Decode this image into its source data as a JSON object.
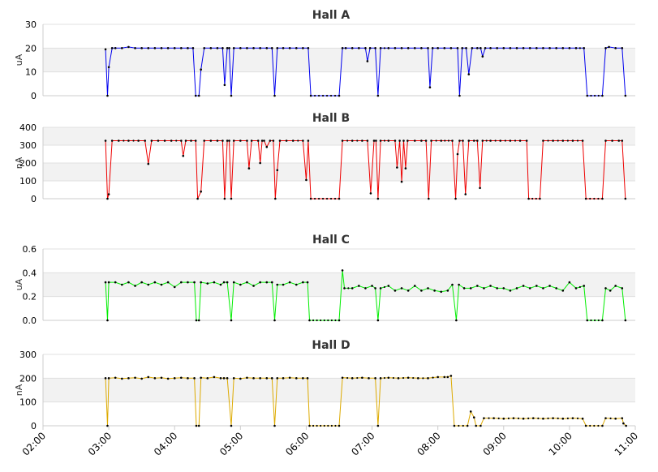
{
  "chart_data": [
    {
      "type": "line",
      "title": "Hall A",
      "ylabel": "uA",
      "ylim": [
        0,
        30
      ],
      "yticks": [
        "0",
        "10",
        "20",
        "30"
      ],
      "color": "#0000ee",
      "points": [
        [
          2.95,
          19.5
        ],
        [
          2.98,
          0
        ],
        [
          3.0,
          12
        ],
        [
          3.05,
          20
        ],
        [
          3.1,
          20
        ],
        [
          3.2,
          20
        ],
        [
          3.3,
          20.5
        ],
        [
          3.4,
          20
        ],
        [
          3.5,
          20
        ],
        [
          3.6,
          20
        ],
        [
          3.7,
          20
        ],
        [
          3.8,
          20
        ],
        [
          3.9,
          20
        ],
        [
          4.0,
          20
        ],
        [
          4.1,
          20
        ],
        [
          4.2,
          20
        ],
        [
          4.28,
          20
        ],
        [
          4.32,
          0
        ],
        [
          4.37,
          0
        ],
        [
          4.4,
          11
        ],
        [
          4.45,
          20
        ],
        [
          4.55,
          20
        ],
        [
          4.65,
          20
        ],
        [
          4.73,
          20
        ],
        [
          4.76,
          4.5
        ],
        [
          4.8,
          20
        ],
        [
          4.83,
          20
        ],
        [
          4.86,
          0
        ],
        [
          4.9,
          20
        ],
        [
          5.0,
          20
        ],
        [
          5.1,
          20
        ],
        [
          5.2,
          20
        ],
        [
          5.3,
          20
        ],
        [
          5.4,
          20
        ],
        [
          5.48,
          20
        ],
        [
          5.52,
          0
        ],
        [
          5.56,
          20
        ],
        [
          5.65,
          20
        ],
        [
          5.75,
          20
        ],
        [
          5.85,
          20
        ],
        [
          5.95,
          20
        ],
        [
          6.03,
          20
        ],
        [
          6.07,
          0
        ],
        [
          6.5,
          0
        ],
        [
          6.55,
          20
        ],
        [
          6.6,
          20
        ],
        [
          6.7,
          20
        ],
        [
          6.8,
          20
        ],
        [
          6.9,
          20
        ],
        [
          6.93,
          14.5
        ],
        [
          6.97,
          20
        ],
        [
          7.05,
          20
        ],
        [
          7.09,
          0
        ],
        [
          7.13,
          20
        ],
        [
          7.25,
          20
        ],
        [
          7.35,
          20
        ],
        [
          7.45,
          20
        ],
        [
          7.55,
          20
        ],
        [
          7.65,
          20
        ],
        [
          7.75,
          20
        ],
        [
          7.85,
          20
        ],
        [
          7.88,
          3.5
        ],
        [
          7.92,
          20
        ],
        [
          8.0,
          20
        ],
        [
          8.1,
          20
        ],
        [
          8.2,
          20
        ],
        [
          8.3,
          20
        ],
        [
          8.33,
          0
        ],
        [
          8.37,
          20
        ],
        [
          8.43,
          20
        ],
        [
          8.47,
          9
        ],
        [
          8.52,
          20
        ],
        [
          8.6,
          20
        ],
        [
          8.65,
          20
        ],
        [
          8.68,
          16.5
        ],
        [
          8.72,
          20
        ],
        [
          8.8,
          20
        ],
        [
          8.9,
          20
        ],
        [
          9.0,
          20
        ],
        [
          9.1,
          20
        ],
        [
          9.2,
          20
        ],
        [
          9.3,
          20
        ],
        [
          9.4,
          20
        ],
        [
          9.5,
          20
        ],
        [
          9.6,
          20
        ],
        [
          9.7,
          20
        ],
        [
          9.8,
          20
        ],
        [
          9.9,
          20
        ],
        [
          10.0,
          20
        ],
        [
          10.1,
          20
        ],
        [
          10.22,
          20
        ],
        [
          10.27,
          0
        ],
        [
          10.5,
          0
        ],
        [
          10.55,
          20
        ],
        [
          10.6,
          20.5
        ],
        [
          10.7,
          20
        ],
        [
          10.8,
          20
        ],
        [
          10.85,
          0
        ]
      ]
    },
    {
      "type": "line",
      "title": "Hall B",
      "ylabel": "nA",
      "ylim": [
        0,
        400
      ],
      "yticks": [
        "0",
        "100",
        "200",
        "300",
        "400"
      ],
      "color": "#ee0000",
      "points": [
        [
          2.95,
          325
        ],
        [
          2.98,
          0
        ],
        [
          3.0,
          25
        ],
        [
          3.05,
          325
        ],
        [
          3.15,
          325
        ],
        [
          3.3,
          325
        ],
        [
          3.45,
          325
        ],
        [
          3.55,
          325
        ],
        [
          3.6,
          195
        ],
        [
          3.65,
          325
        ],
        [
          3.75,
          325
        ],
        [
          3.85,
          325
        ],
        [
          3.95,
          325
        ],
        [
          4.1,
          325
        ],
        [
          4.13,
          240
        ],
        [
          4.17,
          325
        ],
        [
          4.25,
          325
        ],
        [
          4.32,
          325
        ],
        [
          4.35,
          0
        ],
        [
          4.4,
          40
        ],
        [
          4.45,
          325
        ],
        [
          4.55,
          325
        ],
        [
          4.65,
          325
        ],
        [
          4.73,
          325
        ],
        [
          4.76,
          0
        ],
        [
          4.8,
          325
        ],
        [
          4.83,
          325
        ],
        [
          4.86,
          0
        ],
        [
          4.9,
          325
        ],
        [
          5.0,
          325
        ],
        [
          5.1,
          325
        ],
        [
          5.13,
          170
        ],
        [
          5.17,
          325
        ],
        [
          5.27,
          325
        ],
        [
          5.3,
          200
        ],
        [
          5.33,
          325
        ],
        [
          5.36,
          325
        ],
        [
          5.4,
          290
        ],
        [
          5.45,
          325
        ],
        [
          5.5,
          325
        ],
        [
          5.53,
          0
        ],
        [
          5.56,
          160
        ],
        [
          5.6,
          325
        ],
        [
          5.7,
          325
        ],
        [
          5.8,
          325
        ],
        [
          5.95,
          325
        ],
        [
          6.0,
          105
        ],
        [
          6.03,
          325
        ],
        [
          6.07,
          0
        ],
        [
          6.5,
          0
        ],
        [
          6.55,
          325
        ],
        [
          6.7,
          325
        ],
        [
          6.85,
          325
        ],
        [
          6.93,
          325
        ],
        [
          6.98,
          30
        ],
        [
          7.03,
          325
        ],
        [
          7.06,
          325
        ],
        [
          7.09,
          0
        ],
        [
          7.13,
          325
        ],
        [
          7.25,
          325
        ],
        [
          7.35,
          325
        ],
        [
          7.38,
          175
        ],
        [
          7.42,
          325
        ],
        [
          7.45,
          95
        ],
        [
          7.48,
          325
        ],
        [
          7.51,
          170
        ],
        [
          7.54,
          325
        ],
        [
          7.65,
          325
        ],
        [
          7.75,
          325
        ],
        [
          7.82,
          325
        ],
        [
          7.86,
          0
        ],
        [
          7.9,
          325
        ],
        [
          8.05,
          325
        ],
        [
          8.22,
          325
        ],
        [
          8.27,
          0
        ],
        [
          8.3,
          250
        ],
        [
          8.33,
          325
        ],
        [
          8.38,
          325
        ],
        [
          8.42,
          25
        ],
        [
          8.47,
          325
        ],
        [
          8.55,
          325
        ],
        [
          8.6,
          325
        ],
        [
          8.64,
          60
        ],
        [
          8.68,
          325
        ],
        [
          8.8,
          325
        ],
        [
          8.95,
          325
        ],
        [
          9.1,
          325
        ],
        [
          9.25,
          325
        ],
        [
          9.35,
          325
        ],
        [
          9.38,
          0
        ],
        [
          9.55,
          0
        ],
        [
          9.6,
          325
        ],
        [
          9.75,
          325
        ],
        [
          9.9,
          325
        ],
        [
          10.05,
          325
        ],
        [
          10.2,
          325
        ],
        [
          10.25,
          0
        ],
        [
          10.5,
          0
        ],
        [
          10.55,
          325
        ],
        [
          10.65,
          325
        ],
        [
          10.75,
          325
        ],
        [
          10.8,
          325
        ],
        [
          10.85,
          0
        ]
      ]
    },
    {
      "type": "line",
      "title": "Hall C",
      "ylabel": "uA",
      "ylim": [
        0,
        0.6
      ],
      "yticks": [
        "0.0",
        "0.2",
        "0.4",
        "0.6"
      ],
      "color": "#00ee00",
      "points": [
        [
          2.95,
          0.32
        ],
        [
          2.98,
          0
        ],
        [
          3.0,
          0.32
        ],
        [
          3.1,
          0.32
        ],
        [
          3.2,
          0.3
        ],
        [
          3.3,
          0.32
        ],
        [
          3.4,
          0.29
        ],
        [
          3.5,
          0.32
        ],
        [
          3.6,
          0.3
        ],
        [
          3.7,
          0.32
        ],
        [
          3.8,
          0.3
        ],
        [
          3.9,
          0.32
        ],
        [
          4.0,
          0.28
        ],
        [
          4.1,
          0.32
        ],
        [
          4.2,
          0.32
        ],
        [
          4.3,
          0.32
        ],
        [
          4.33,
          0
        ],
        [
          4.37,
          0
        ],
        [
          4.4,
          0.32
        ],
        [
          4.5,
          0.31
        ],
        [
          4.6,
          0.32
        ],
        [
          4.7,
          0.3
        ],
        [
          4.75,
          0.32
        ],
        [
          4.8,
          0.32
        ],
        [
          4.86,
          0
        ],
        [
          4.9,
          0.32
        ],
        [
          5.0,
          0.3
        ],
        [
          5.1,
          0.32
        ],
        [
          5.2,
          0.29
        ],
        [
          5.3,
          0.32
        ],
        [
          5.4,
          0.32
        ],
        [
          5.48,
          0.32
        ],
        [
          5.52,
          0
        ],
        [
          5.56,
          0.3
        ],
        [
          5.65,
          0.3
        ],
        [
          5.75,
          0.32
        ],
        [
          5.85,
          0.3
        ],
        [
          5.95,
          0.32
        ],
        [
          6.02,
          0.32
        ],
        [
          6.05,
          0
        ],
        [
          6.5,
          0
        ],
        [
          6.55,
          0.42
        ],
        [
          6.58,
          0.27
        ],
        [
          6.7,
          0.27
        ],
        [
          6.8,
          0.29
        ],
        [
          6.9,
          0.27
        ],
        [
          7.0,
          0.29
        ],
        [
          7.05,
          0.27
        ],
        [
          7.09,
          0
        ],
        [
          7.13,
          0.27
        ],
        [
          7.25,
          0.29
        ],
        [
          7.35,
          0.25
        ],
        [
          7.45,
          0.27
        ],
        [
          7.55,
          0.25
        ],
        [
          7.65,
          0.29
        ],
        [
          7.75,
          0.25
        ],
        [
          7.85,
          0.27
        ],
        [
          7.95,
          0.25
        ],
        [
          8.05,
          0.24
        ],
        [
          8.15,
          0.25
        ],
        [
          8.22,
          0.3
        ],
        [
          8.28,
          0
        ],
        [
          8.32,
          0.3
        ],
        [
          8.4,
          0.27
        ],
        [
          8.5,
          0.27
        ],
        [
          8.6,
          0.29
        ],
        [
          8.7,
          0.27
        ],
        [
          8.8,
          0.29
        ],
        [
          8.9,
          0.27
        ],
        [
          9.0,
          0.27
        ],
        [
          9.1,
          0.25
        ],
        [
          9.2,
          0.27
        ],
        [
          9.3,
          0.29
        ],
        [
          9.4,
          0.27
        ],
        [
          9.5,
          0.29
        ],
        [
          9.6,
          0.27
        ],
        [
          9.7,
          0.29
        ],
        [
          9.8,
          0.27
        ],
        [
          9.9,
          0.25
        ],
        [
          10.0,
          0.32
        ],
        [
          10.1,
          0.27
        ],
        [
          10.22,
          0.29
        ],
        [
          10.27,
          0
        ],
        [
          10.5,
          0
        ],
        [
          10.55,
          0.27
        ],
        [
          10.62,
          0.25
        ],
        [
          10.7,
          0.29
        ],
        [
          10.8,
          0.27
        ],
        [
          10.85,
          0
        ]
      ]
    },
    {
      "type": "line",
      "title": "Hall D",
      "ylabel": "nA",
      "ylim": [
        0,
        300
      ],
      "yticks": [
        "0",
        "100",
        "200",
        "300"
      ],
      "color": "#ddaa00",
      "points": [
        [
          2.95,
          200
        ],
        [
          2.98,
          0
        ],
        [
          3.0,
          200
        ],
        [
          3.1,
          202
        ],
        [
          3.2,
          198
        ],
        [
          3.3,
          200
        ],
        [
          3.4,
          202
        ],
        [
          3.5,
          198
        ],
        [
          3.6,
          205
        ],
        [
          3.7,
          200
        ],
        [
          3.8,
          202
        ],
        [
          3.9,
          198
        ],
        [
          4.0,
          200
        ],
        [
          4.1,
          202
        ],
        [
          4.2,
          200
        ],
        [
          4.3,
          200
        ],
        [
          4.33,
          0
        ],
        [
          4.37,
          0
        ],
        [
          4.4,
          202
        ],
        [
          4.5,
          200
        ],
        [
          4.6,
          205
        ],
        [
          4.7,
          200
        ],
        [
          4.75,
          200
        ],
        [
          4.8,
          200
        ],
        [
          4.86,
          0
        ],
        [
          4.9,
          200
        ],
        [
          5.0,
          198
        ],
        [
          5.1,
          202
        ],
        [
          5.2,
          200
        ],
        [
          5.3,
          200
        ],
        [
          5.4,
          200
        ],
        [
          5.48,
          200
        ],
        [
          5.52,
          0
        ],
        [
          5.56,
          200
        ],
        [
          5.65,
          200
        ],
        [
          5.75,
          202
        ],
        [
          5.85,
          200
        ],
        [
          5.95,
          200
        ],
        [
          6.02,
          200
        ],
        [
          6.05,
          0
        ],
        [
          6.5,
          0
        ],
        [
          6.55,
          202
        ],
        [
          6.7,
          200
        ],
        [
          6.85,
          202
        ],
        [
          6.95,
          200
        ],
        [
          7.05,
          200
        ],
        [
          7.09,
          0
        ],
        [
          7.13,
          200
        ],
        [
          7.25,
          202
        ],
        [
          7.4,
          200
        ],
        [
          7.55,
          202
        ],
        [
          7.7,
          200
        ],
        [
          7.85,
          200
        ],
        [
          8.0,
          205
        ],
        [
          8.1,
          205
        ],
        [
          8.15,
          205
        ],
        [
          8.2,
          210
        ],
        [
          8.25,
          0
        ],
        [
          8.45,
          0
        ],
        [
          8.5,
          60
        ],
        [
          8.55,
          35
        ],
        [
          8.58,
          0
        ],
        [
          8.65,
          0
        ],
        [
          8.7,
          32
        ],
        [
          8.85,
          32
        ],
        [
          9.0,
          30
        ],
        [
          9.15,
          32
        ],
        [
          9.3,
          30
        ],
        [
          9.45,
          32
        ],
        [
          9.6,
          30
        ],
        [
          9.75,
          32
        ],
        [
          9.9,
          30
        ],
        [
          10.05,
          32
        ],
        [
          10.2,
          30
        ],
        [
          10.25,
          0
        ],
        [
          10.5,
          0
        ],
        [
          10.55,
          32
        ],
        [
          10.7,
          30
        ],
        [
          10.8,
          32
        ],
        [
          10.82,
          10
        ],
        [
          10.86,
          0
        ]
      ]
    }
  ],
  "x_axis": {
    "range": [
      "02:00",
      "11:00"
    ],
    "ticks": [
      "02:00",
      "03:00",
      "04:00",
      "05:00",
      "06:00",
      "07:00",
      "08:00",
      "09:00",
      "10:00",
      "11:00"
    ]
  }
}
